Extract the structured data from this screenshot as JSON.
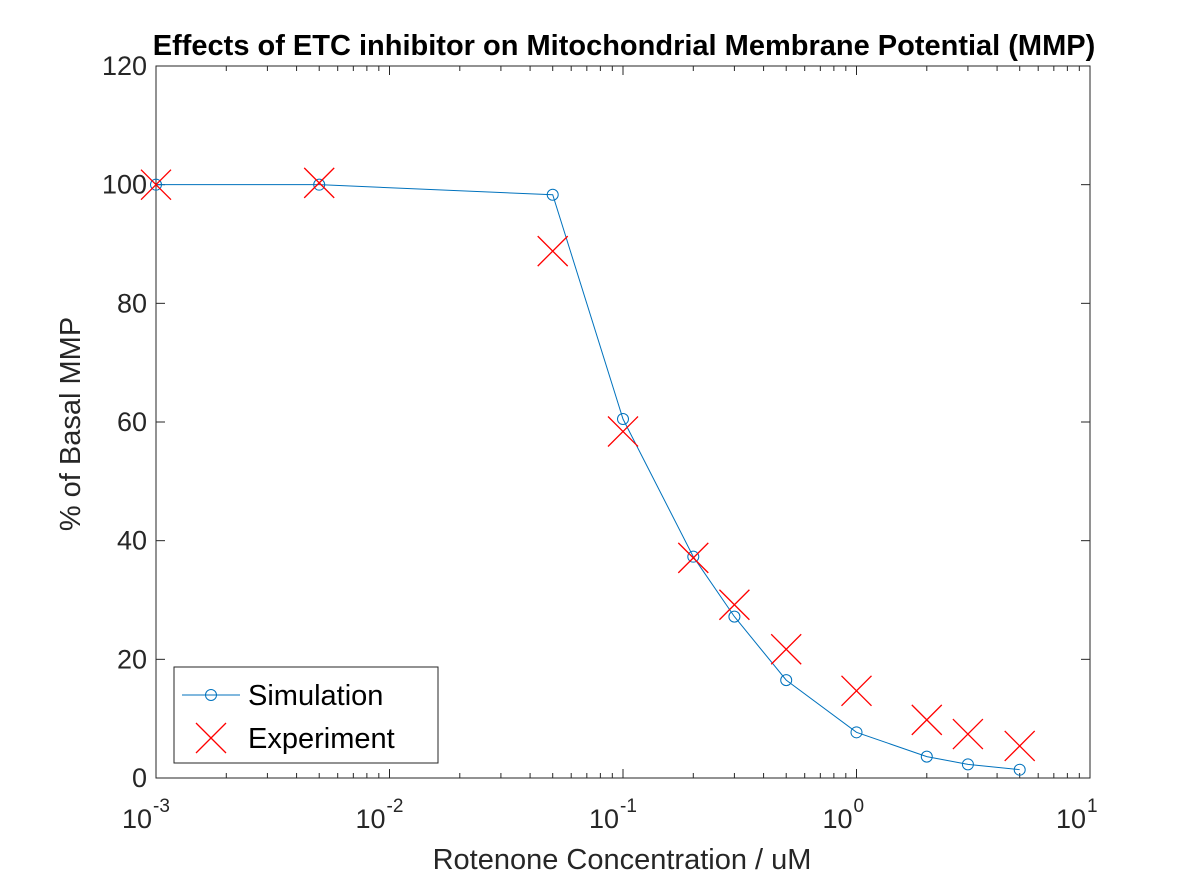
{
  "chart_data": {
    "type": "line",
    "title": "Effects of ETC inhibitor on Mitochondrial Membrane Potential (MMP)",
    "xlabel": "Rotenone Concentration / uM",
    "ylabel": "% of Basal MMP",
    "xscale": "log",
    "xlim": [
      0.001,
      10
    ],
    "ylim": [
      0,
      120
    ],
    "xticks": [
      {
        "value": 0.001,
        "base": "10",
        "exp": "-3"
      },
      {
        "value": 0.01,
        "base": "10",
        "exp": "-2"
      },
      {
        "value": 0.1,
        "base": "10",
        "exp": "-1"
      },
      {
        "value": 1,
        "base": "10",
        "exp": "0"
      },
      {
        "value": 10,
        "base": "10",
        "exp": "1"
      }
    ],
    "yticks": [
      {
        "value": 0,
        "label": "0"
      },
      {
        "value": 20,
        "label": "20"
      },
      {
        "value": 40,
        "label": "40"
      },
      {
        "value": 60,
        "label": "60"
      },
      {
        "value": 80,
        "label": "80"
      },
      {
        "value": 100,
        "label": "100"
      },
      {
        "value": 120,
        "label": "120"
      }
    ],
    "grid": false,
    "legend_position": "bottom-left",
    "series": [
      {
        "name": "Simulation",
        "style": "line-circle",
        "color": "#0072BD",
        "x": [
          0.001,
          0.005,
          0.05,
          0.1,
          0.2,
          0.3,
          0.5,
          1,
          2,
          3,
          5
        ],
        "y": [
          100,
          100,
          98.3,
          60.5,
          37.3,
          27.2,
          16.5,
          7.7,
          3.6,
          2.3,
          1.4
        ]
      },
      {
        "name": "Experiment",
        "style": "cross",
        "color": "#FF0000",
        "x": [
          0.001,
          0.005,
          0.05,
          0.1,
          0.2,
          0.3,
          0.5,
          1,
          2,
          3,
          5
        ],
        "y": [
          100,
          100.3,
          88.8,
          58.4,
          37.1,
          29.2,
          21.7,
          14.7,
          9.8,
          7.4,
          5.4
        ]
      }
    ]
  }
}
